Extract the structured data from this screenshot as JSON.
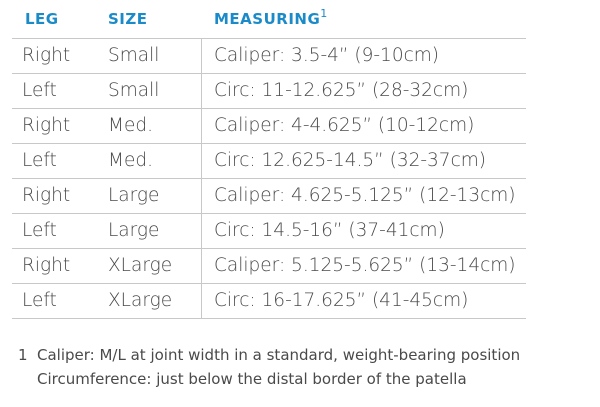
{
  "table": {
    "header": [
      "LEG",
      "SIZE",
      "MEASURING"
    ],
    "header_note": "1",
    "rows": [
      [
        "Right",
        "Small",
        "Caliper: 3.5-4” (9-10cm)"
      ],
      [
        "Left",
        "Small",
        "Circ: 11-12.625” (28-32cm)"
      ],
      [
        "Right",
        "Med.",
        "Caliper: 4-4.625” (10-12cm)"
      ],
      [
        "Left",
        "Med.",
        "Circ: 12.625-14.5” (32-37cm)"
      ],
      [
        "Right",
        "Large",
        "Caliper: 4.625-5.125” (12-13cm)"
      ],
      [
        "Left",
        "Large",
        "Circ: 14.5-16” (37-41cm)"
      ],
      [
        "Right",
        "XLarge",
        "Caliper: 5.125-5.625” (13-14cm)"
      ],
      [
        "Left",
        "XLarge",
        "Circ: 16-17.625” (41-45cm)"
      ]
    ]
  },
  "footnote": {
    "marker": "1",
    "lines": [
      "Caliper: M/L at joint width in a standard, weight-bearing position",
      "Circumference: just below the distal border of the patella"
    ]
  }
}
